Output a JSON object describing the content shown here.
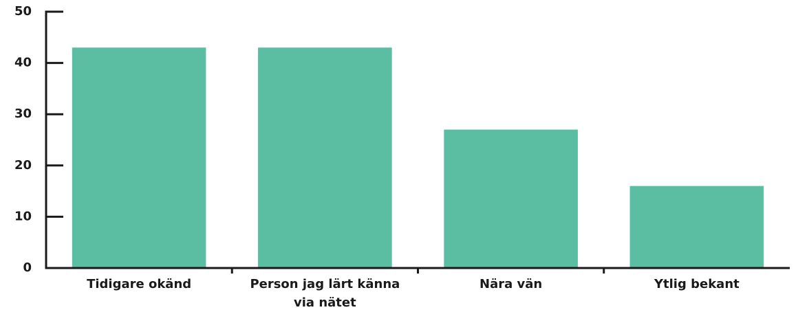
{
  "chart_data": {
    "type": "bar",
    "categories": [
      "Tidigare okänd",
      "Person jag lärt känna via nätet",
      "Nära vän",
      "Ytlig bekant"
    ],
    "values": [
      43,
      43,
      27,
      16
    ],
    "color": "#5bbda2",
    "ylim": [
      0,
      50
    ],
    "yticks": [
      0,
      10,
      20,
      30,
      40,
      50
    ],
    "grid": false
  }
}
